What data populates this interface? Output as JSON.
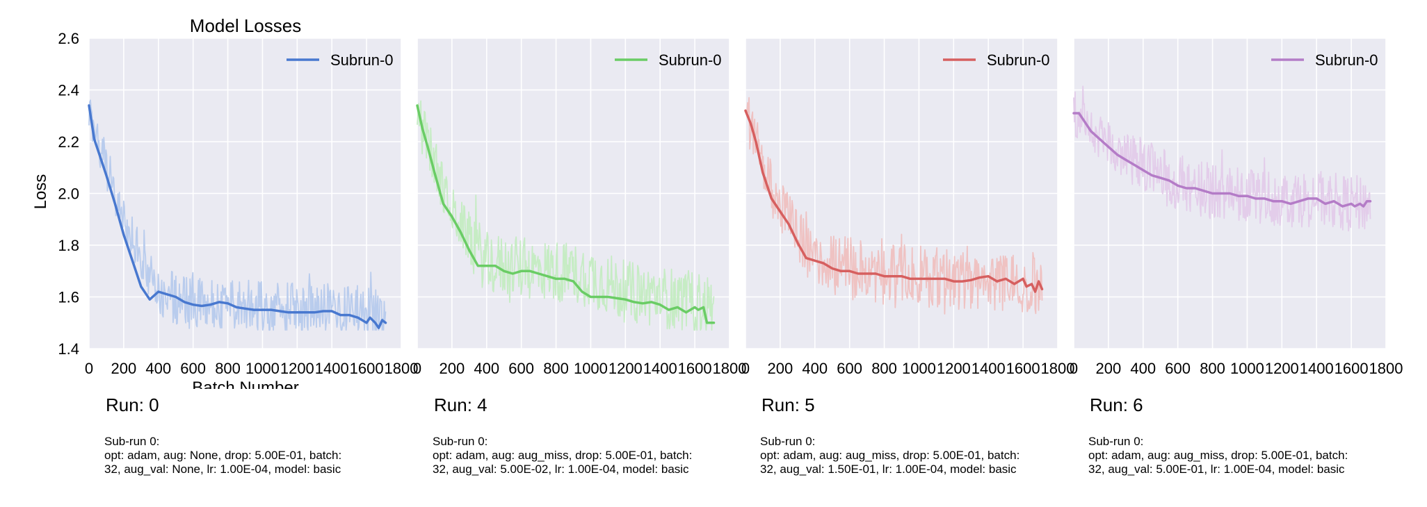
{
  "figure": {
    "title": "Model Losses",
    "xlabel": "Batch Number",
    "ylabel": "Loss"
  },
  "chart_data": [
    {
      "type": "line",
      "title": "Model Losses",
      "xlabel": "Batch Number",
      "ylabel": "Loss",
      "xlim": [
        0,
        1800
      ],
      "ylim": [
        1.4,
        2.6
      ],
      "xticks": [
        "0",
        "200",
        "400",
        "600",
        "800",
        "1000",
        "1200",
        "1400",
        "1600",
        "1800"
      ],
      "yticks": [
        "1.4",
        "1.6",
        "1.8",
        "2.0",
        "2.2",
        "2.4",
        "2.6"
      ],
      "grid": true,
      "legend": "upper-right",
      "series": [
        {
          "name": "Subrun-0",
          "color": "#4878cf",
          "smoothed": {
            "x": [
              0,
              30,
              60,
              100,
              150,
              200,
              250,
              300,
              350,
              400,
              450,
              500,
              550,
              600,
              650,
              700,
              750,
              800,
              850,
              900,
              950,
              1000,
              1050,
              1100,
              1150,
              1200,
              1250,
              1300,
              1350,
              1400,
              1450,
              1500,
              1550,
              1600,
              1620,
              1650,
              1670,
              1690,
              1710
            ],
            "y": [
              2.34,
              2.21,
              2.15,
              2.07,
              1.96,
              1.84,
              1.74,
              1.64,
              1.59,
              1.62,
              1.61,
              1.6,
              1.58,
              1.57,
              1.565,
              1.57,
              1.58,
              1.575,
              1.56,
              1.555,
              1.55,
              1.55,
              1.55,
              1.545,
              1.54,
              1.54,
              1.54,
              1.54,
              1.545,
              1.545,
              1.53,
              1.53,
              1.52,
              1.5,
              1.52,
              1.5,
              1.48,
              1.51,
              1.5
            ]
          },
          "raw": {
            "noise": 0.1,
            "x": [
              0,
              200,
              400,
              600,
              800,
              1000,
              1200,
              1400,
              1600,
              1710
            ],
            "y": [
              2.3,
              1.9,
              1.62,
              1.57,
              1.58,
              1.56,
              1.56,
              1.56,
              1.54,
              1.52
            ]
          }
        }
      ]
    },
    {
      "type": "line",
      "xlim": [
        0,
        1800
      ],
      "ylim": [
        1.4,
        2.6
      ],
      "xticks": [
        "0",
        "200",
        "400",
        "600",
        "800",
        "1000",
        "1200",
        "1400",
        "1600",
        "1800"
      ],
      "grid": true,
      "legend": "upper-right",
      "series": [
        {
          "name": "Subrun-0",
          "color": "#6acc65",
          "smoothed": {
            "x": [
              0,
              30,
              60,
              100,
              150,
              200,
              250,
              300,
              350,
              400,
              450,
              500,
              550,
              600,
              650,
              700,
              750,
              800,
              850,
              900,
              950,
              1000,
              1050,
              1100,
              1150,
              1200,
              1250,
              1300,
              1350,
              1400,
              1450,
              1500,
              1550,
              1600,
              1620,
              1650,
              1670,
              1690,
              1710
            ],
            "y": [
              2.34,
              2.25,
              2.18,
              2.08,
              1.96,
              1.91,
              1.85,
              1.78,
              1.72,
              1.72,
              1.72,
              1.7,
              1.69,
              1.7,
              1.7,
              1.69,
              1.68,
              1.67,
              1.67,
              1.66,
              1.62,
              1.6,
              1.6,
              1.6,
              1.595,
              1.59,
              1.58,
              1.575,
              1.58,
              1.57,
              1.55,
              1.56,
              1.54,
              1.56,
              1.55,
              1.56,
              1.5,
              1.5,
              1.5
            ]
          },
          "raw": {
            "noise": 0.12,
            "x": [
              0,
              200,
              400,
              600,
              800,
              1000,
              1200,
              1400,
              1600,
              1710
            ],
            "y": [
              2.3,
              1.93,
              1.73,
              1.71,
              1.7,
              1.68,
              1.62,
              1.6,
              1.58,
              1.56
            ]
          }
        }
      ]
    },
    {
      "type": "line",
      "xlim": [
        0,
        1800
      ],
      "ylim": [
        1.4,
        2.6
      ],
      "xticks": [
        "0",
        "200",
        "400",
        "600",
        "800",
        "1000",
        "1200",
        "1400",
        "1600",
        "1800"
      ],
      "grid": true,
      "legend": "upper-right",
      "series": [
        {
          "name": "Subrun-0",
          "color": "#d65f5f",
          "smoothed": {
            "x": [
              0,
              30,
              60,
              100,
              150,
              200,
              250,
              300,
              350,
              400,
              450,
              500,
              550,
              600,
              650,
              700,
              750,
              800,
              850,
              900,
              950,
              1000,
              1050,
              1100,
              1150,
              1200,
              1250,
              1300,
              1350,
              1400,
              1450,
              1500,
              1550,
              1600,
              1620,
              1650,
              1670,
              1690,
              1710
            ],
            "y": [
              2.32,
              2.27,
              2.2,
              2.08,
              1.98,
              1.93,
              1.88,
              1.81,
              1.75,
              1.74,
              1.73,
              1.71,
              1.7,
              1.7,
              1.69,
              1.69,
              1.69,
              1.68,
              1.68,
              1.68,
              1.67,
              1.67,
              1.67,
              1.67,
              1.67,
              1.66,
              1.66,
              1.665,
              1.675,
              1.68,
              1.66,
              1.67,
              1.65,
              1.67,
              1.64,
              1.65,
              1.62,
              1.66,
              1.63
            ]
          },
          "raw": {
            "noise": 0.12,
            "x": [
              0,
              200,
              400,
              600,
              800,
              1000,
              1200,
              1400,
              1600,
              1710
            ],
            "y": [
              2.3,
              1.95,
              1.75,
              1.71,
              1.69,
              1.68,
              1.67,
              1.67,
              1.66,
              1.65
            ]
          }
        }
      ]
    },
    {
      "type": "line",
      "xlim": [
        0,
        1800
      ],
      "ylim": [
        1.4,
        2.6
      ],
      "xticks": [
        "0",
        "200",
        "400",
        "600",
        "800",
        "1000",
        "1200",
        "1400",
        "1600",
        "1800"
      ],
      "grid": true,
      "legend": "upper-right",
      "series": [
        {
          "name": "Subrun-0",
          "color": "#b47cc7",
          "smoothed": {
            "x": [
              0,
              30,
              60,
              100,
              150,
              200,
              250,
              300,
              350,
              400,
              450,
              500,
              550,
              600,
              650,
              700,
              750,
              800,
              850,
              900,
              950,
              1000,
              1050,
              1100,
              1150,
              1200,
              1250,
              1300,
              1350,
              1400,
              1450,
              1500,
              1550,
              1600,
              1620,
              1650,
              1670,
              1690,
              1710
            ],
            "y": [
              2.31,
              2.31,
              2.28,
              2.24,
              2.21,
              2.18,
              2.15,
              2.13,
              2.11,
              2.09,
              2.07,
              2.06,
              2.05,
              2.03,
              2.02,
              2.02,
              2.01,
              2.0,
              2.0,
              2.0,
              1.99,
              1.99,
              1.98,
              1.98,
              1.97,
              1.97,
              1.96,
              1.97,
              1.98,
              1.98,
              1.96,
              1.97,
              1.95,
              1.96,
              1.95,
              1.96,
              1.95,
              1.97,
              1.97
            ]
          },
          "raw": {
            "noise": 0.11,
            "x": [
              0,
              200,
              400,
              600,
              800,
              1000,
              1200,
              1400,
              1600,
              1710
            ],
            "y": [
              2.3,
              2.19,
              2.1,
              2.04,
              2.01,
              2.0,
              1.98,
              1.98,
              1.96,
              1.96
            ]
          }
        }
      ]
    }
  ],
  "captions": [
    {
      "run": "Run: 0",
      "subrun": "Sub-run 0:",
      "line1": "opt: adam, aug: None, drop: 5.00E-01, batch:",
      "line2": "32, aug_val: None, lr: 1.00E-04, model: basic"
    },
    {
      "run": "Run: 4",
      "subrun": "Sub-run 0:",
      "line1": "opt: adam, aug: aug_miss, drop: 5.00E-01, batch:",
      "line2": "32, aug_val: 5.00E-02, lr: 1.00E-04, model: basic"
    },
    {
      "run": "Run: 5",
      "subrun": "Sub-run 0:",
      "line1": "opt: adam, aug: aug_miss, drop: 5.00E-01, batch:",
      "line2": "32, aug_val: 1.50E-01, lr: 1.00E-04, model: basic"
    },
    {
      "run": "Run: 6",
      "subrun": "Sub-run 0:",
      "line1": "opt: adam, aug: aug_miss, drop: 5.00E-01, batch:",
      "line2": "32, aug_val: 5.00E-01, lr: 1.00E-04, model: basic"
    }
  ]
}
